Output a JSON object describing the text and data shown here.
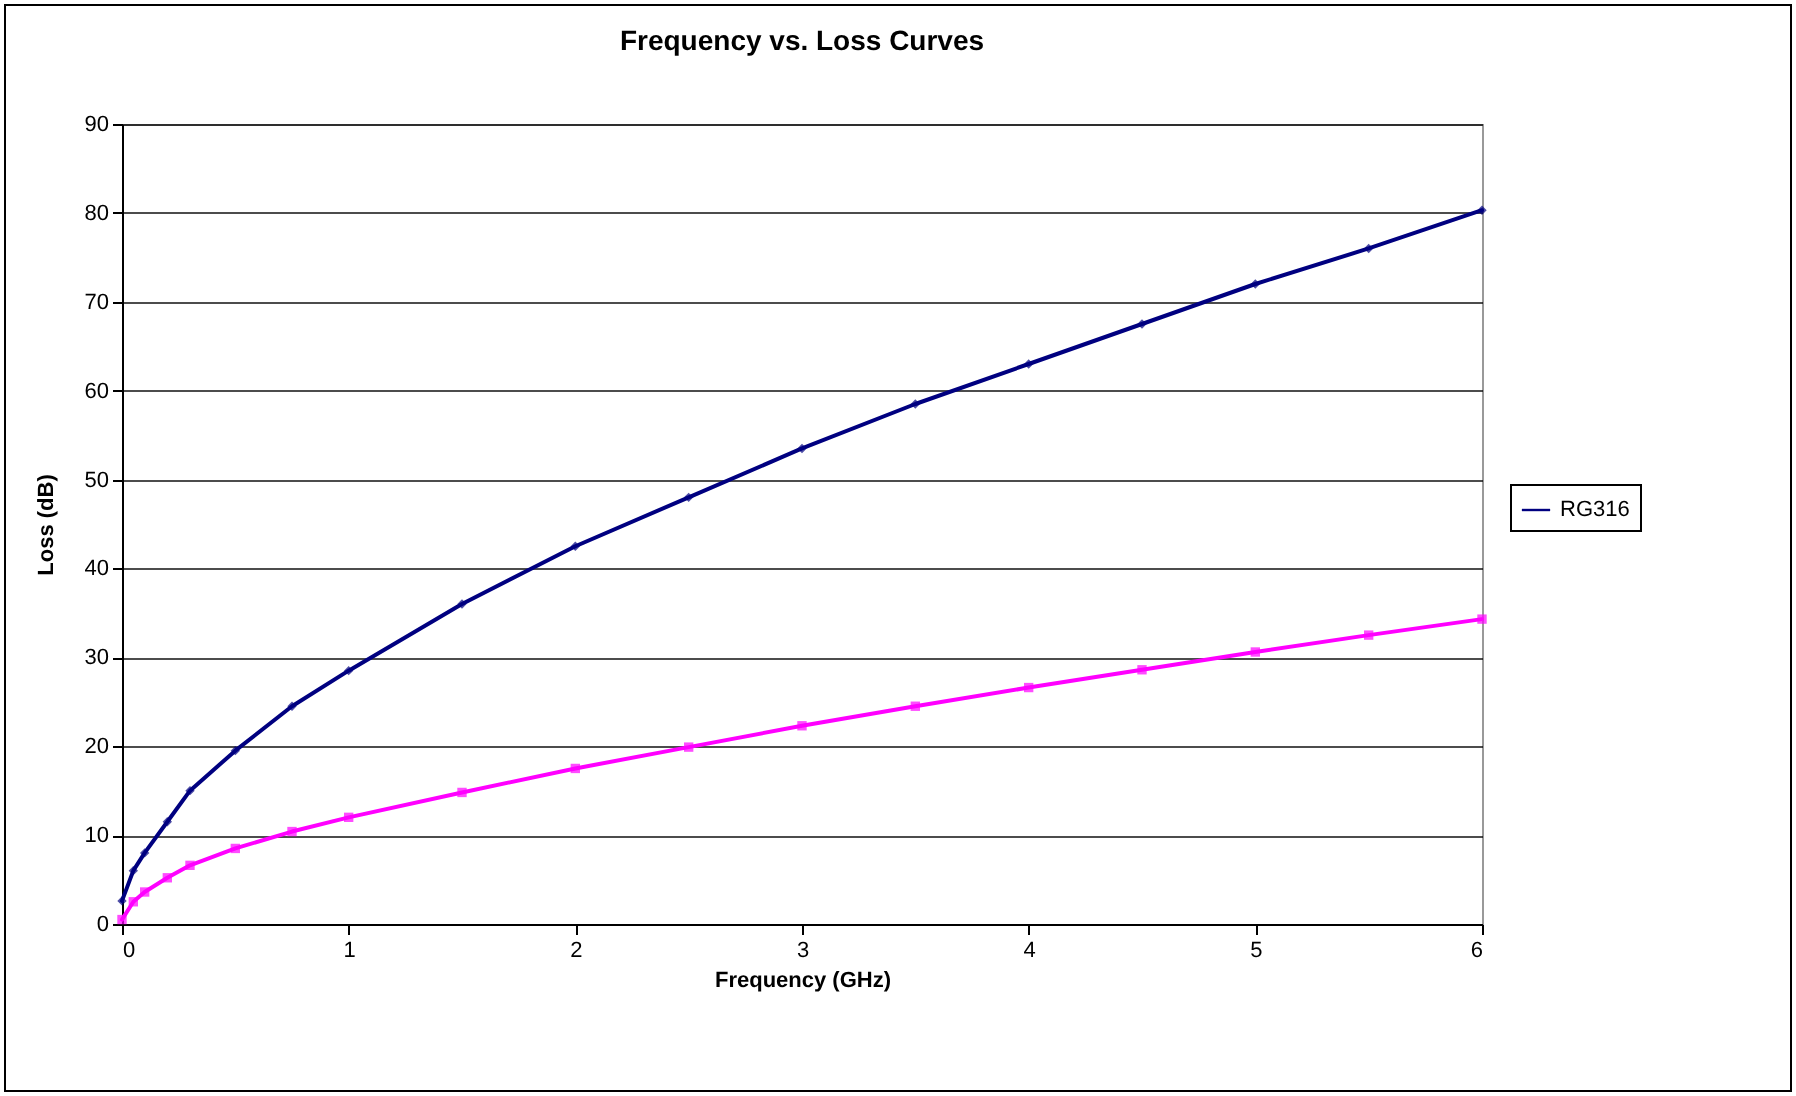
{
  "chart_data": {
    "type": "line",
    "title": "Frequency vs. Loss Curves",
    "xlabel": "Frequency (GHz)",
    "ylabel": "Loss (dB)",
    "x": [
      0,
      0.05,
      0.1,
      0.2,
      0.3,
      0.5,
      0.75,
      1,
      1.5,
      2,
      2.5,
      3,
      3.5,
      4,
      4.5,
      5,
      5.5,
      6
    ],
    "series": [
      {
        "name": "RG316",
        "color": "#000080",
        "marker": "diamond",
        "values": [
          2.6,
          6,
          8,
          11.5,
          15,
          19.5,
          24.5,
          28.5,
          36,
          42.5,
          48,
          53.5,
          58.5,
          63,
          67.5,
          72,
          76,
          80.3
        ]
      },
      {
        "color": "#ff00ff",
        "marker": "square",
        "values": [
          0.5,
          2.5,
          3.6,
          5.2,
          6.6,
          8.5,
          10.4,
          12,
          14.8,
          17.5,
          19.9,
          22.3,
          24.5,
          26.6,
          28.6,
          30.6,
          32.5,
          34.3
        ]
      }
    ],
    "xlim": [
      0,
      6
    ],
    "xticks": [
      0,
      1,
      2,
      3,
      4,
      5,
      6
    ],
    "ylim": [
      0,
      90
    ],
    "yticks": [
      0,
      10,
      20,
      30,
      40,
      50,
      60,
      70,
      80,
      90
    ],
    "grid": "y",
    "legend": "right",
    "line_style": "solid"
  }
}
